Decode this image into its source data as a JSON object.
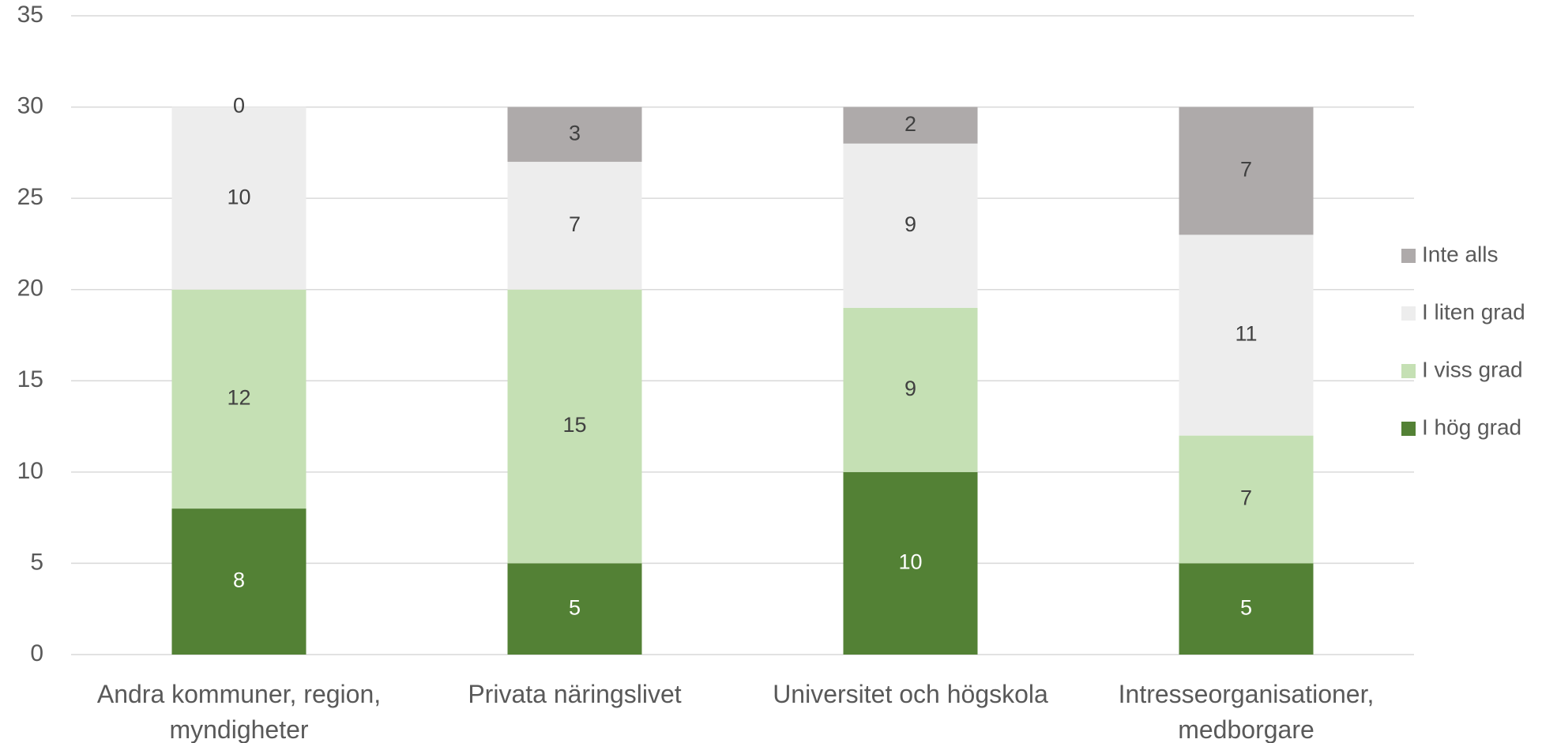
{
  "chart_data": {
    "type": "stacked_bar",
    "categories": [
      "Andra kommuner, region, myndigheter",
      "Privata näringslivet",
      "Universitet och högskola",
      "Intresseorganisationer, medborgare"
    ],
    "series": [
      {
        "name": "I hög grad",
        "color": "#538135",
        "label_color": "#ffffff",
        "values": [
          8,
          5,
          10,
          5
        ]
      },
      {
        "name": "I viss grad",
        "color": "#c5e0b4",
        "label_color": "#404040",
        "values": [
          12,
          15,
          9,
          7
        ]
      },
      {
        "name": "I liten grad",
        "color": "#ededed",
        "label_color": "#404040",
        "values": [
          10,
          7,
          9,
          11
        ]
      },
      {
        "name": "Inte alls",
        "color": "#aeaaaa",
        "label_color": "#404040",
        "values": [
          0,
          3,
          2,
          7
        ]
      }
    ],
    "ylim": [
      0,
      35
    ],
    "yticks": [
      0,
      5,
      10,
      15,
      20,
      25,
      30,
      35
    ],
    "grid": true,
    "legend": "right"
  }
}
